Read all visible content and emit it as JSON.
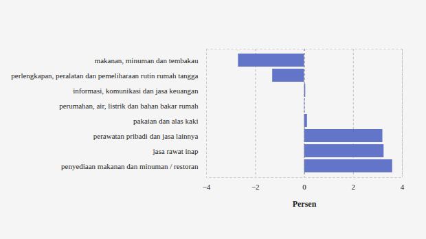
{
  "chart_data": {
    "type": "bar",
    "orientation": "horizontal",
    "categories": [
      "makanan, minuman dan tembakau",
      "perlengkapan, peralatan dan pemeliharaan rutin rumah tangga",
      "informasi, komunikasi dan jasa keuangan",
      "perumahan, air, listrik dan bahan bakar rumah",
      "pakaian dan alas kaki",
      "perawatan pribadi dan jasa lainnya",
      "jasa rawat inap",
      "penyediaan makanan dan minuman / restoran"
    ],
    "values": [
      -2.7,
      -1.3,
      0.05,
      0.02,
      0.12,
      3.2,
      3.25,
      3.6
    ],
    "color": "#6275c9",
    "x_label": "Persen",
    "xlim": [
      -4,
      4
    ],
    "xticks": [
      -4,
      -2,
      0,
      2,
      4
    ],
    "grid": true
  }
}
